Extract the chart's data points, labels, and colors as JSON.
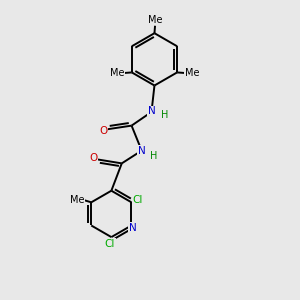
{
  "bg_color": "#e8e8e8",
  "bond_color": "#000000",
  "bond_lw": 1.4,
  "atom_colors": {
    "N": "#0000cc",
    "O": "#cc0000",
    "Cl": "#00aa00",
    "H": "#008800",
    "C": "#000000"
  },
  "font_size_atom": 7.5,
  "font_size_label": 7.0,
  "double_sep": 0.1,
  "xlim": [
    0,
    10
  ],
  "ylim": [
    0,
    10
  ]
}
